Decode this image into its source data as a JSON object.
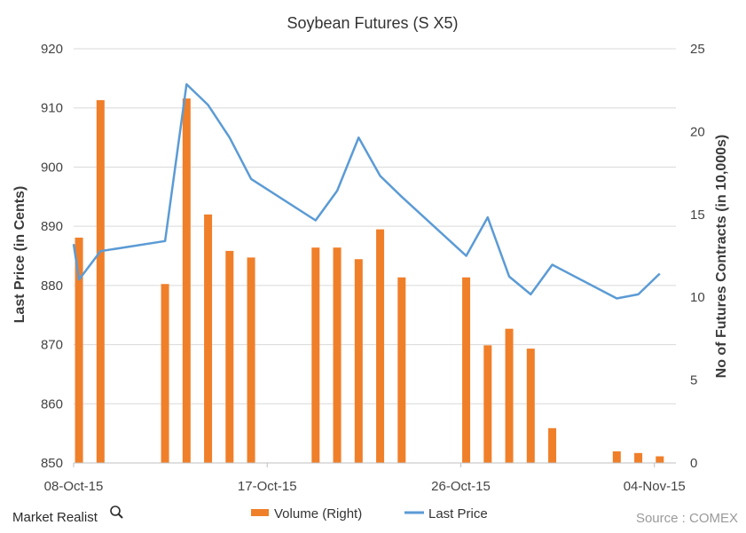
{
  "chart_data": {
    "type": "bar+line",
    "title": "Soybean  Futures  (S X5)",
    "ylabel_left": "Last Price (in Cents)",
    "ylabel_right": "No of Futures Contracts (in 10,000s)",
    "y_left_lim": [
      850,
      920
    ],
    "y_left_ticks": [
      850,
      860,
      870,
      880,
      890,
      900,
      910,
      920
    ],
    "y_right_lim": [
      0,
      25
    ],
    "y_right_ticks": [
      0,
      5,
      10,
      15,
      20,
      25
    ],
    "x_tick_labels": [
      "08-Oct-15",
      "17-Oct-15",
      "26-Oct-15",
      "04-Nov-15"
    ],
    "x_tick_dates": [
      "2015-10-08",
      "2015-10-17",
      "2015-10-26",
      "2015-11-04"
    ],
    "x_range": [
      "2015-10-08",
      "2015-11-05"
    ],
    "legend_position": "bottom",
    "series": [
      {
        "name": "Volume (Right)",
        "type": "bar",
        "axis": "right",
        "color": "#F07F2A",
        "points": [
          {
            "date": "2015-10-08",
            "value": 13.6
          },
          {
            "date": "2015-10-09",
            "value": 21.9
          },
          {
            "date": "2015-10-12",
            "value": 10.8
          },
          {
            "date": "2015-10-13",
            "value": 22.0
          },
          {
            "date": "2015-10-14",
            "value": 15.0
          },
          {
            "date": "2015-10-15",
            "value": 12.8
          },
          {
            "date": "2015-10-16",
            "value": 12.4
          },
          {
            "date": "2015-10-19",
            "value": 13.0
          },
          {
            "date": "2015-10-20",
            "value": 13.0
          },
          {
            "date": "2015-10-21",
            "value": 12.3
          },
          {
            "date": "2015-10-22",
            "value": 14.1
          },
          {
            "date": "2015-10-23",
            "value": 11.2
          },
          {
            "date": "2015-10-26",
            "value": 11.2
          },
          {
            "date": "2015-10-27",
            "value": 7.1
          },
          {
            "date": "2015-10-28",
            "value": 8.1
          },
          {
            "date": "2015-10-29",
            "value": 6.9
          },
          {
            "date": "2015-10-30",
            "value": 2.1
          },
          {
            "date": "2015-11-02",
            "value": 0.7
          },
          {
            "date": "2015-11-03",
            "value": 0.6
          },
          {
            "date": "2015-11-04",
            "value": 0.4
          }
        ]
      },
      {
        "name": "Last Price",
        "type": "line",
        "axis": "left",
        "color": "#5B9BD5",
        "points": [
          {
            "date": "2015-10-07",
            "value": 887.0
          },
          {
            "date": "2015-10-08",
            "value": 881.0
          },
          {
            "date": "2015-10-09",
            "value": 885.8
          },
          {
            "date": "2015-10-12",
            "value": 887.5
          },
          {
            "date": "2015-10-13",
            "value": 914.0
          },
          {
            "date": "2015-10-14",
            "value": 910.5
          },
          {
            "date": "2015-10-15",
            "value": 905.0
          },
          {
            "date": "2015-10-16",
            "value": 898.0
          },
          {
            "date": "2015-10-19",
            "value": 891.0
          },
          {
            "date": "2015-10-20",
            "value": 896.0
          },
          {
            "date": "2015-10-21",
            "value": 905.0
          },
          {
            "date": "2015-10-22",
            "value": 898.5
          },
          {
            "date": "2015-10-23",
            "value": 895.0
          },
          {
            "date": "2015-10-26",
            "value": 885.0
          },
          {
            "date": "2015-10-27",
            "value": 891.5
          },
          {
            "date": "2015-10-28",
            "value": 881.5
          },
          {
            "date": "2015-10-29",
            "value": 878.5
          },
          {
            "date": "2015-10-30",
            "value": 883.5
          },
          {
            "date": "2015-11-02",
            "value": 877.8
          },
          {
            "date": "2015-11-03",
            "value": 878.5
          },
          {
            "date": "2015-11-04",
            "value": 882.0
          }
        ]
      }
    ]
  },
  "branding": {
    "logo_text": "Market Realist",
    "source": "Source : COMEX"
  }
}
